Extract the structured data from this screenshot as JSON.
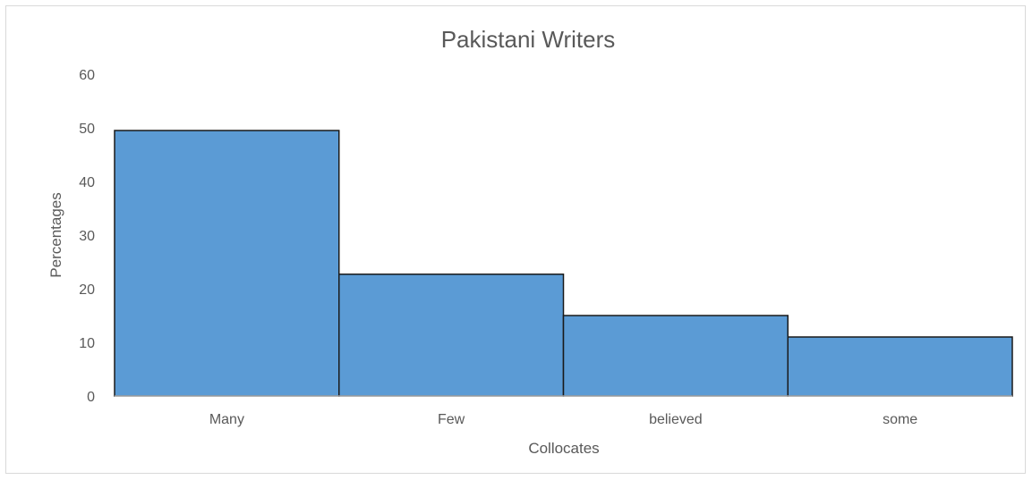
{
  "chart_data": {
    "type": "bar",
    "title": "Pakistani Writers",
    "xlabel": "Collocates",
    "ylabel": "Percentages",
    "categories": [
      "Many",
      "Few",
      "believed",
      "some"
    ],
    "values": [
      49.5,
      22.7,
      15.0,
      11.0
    ],
    "ylim": [
      0,
      60
    ],
    "yticks": [
      "0",
      "10",
      "20",
      "30",
      "40",
      "50",
      "60"
    ],
    "grid": false,
    "legend": "none",
    "colors": {
      "bar_fill": "#5b9bd5",
      "bar_outline": "#1a1a1a",
      "text": "#595959",
      "axis": "#d9d9d9"
    }
  }
}
